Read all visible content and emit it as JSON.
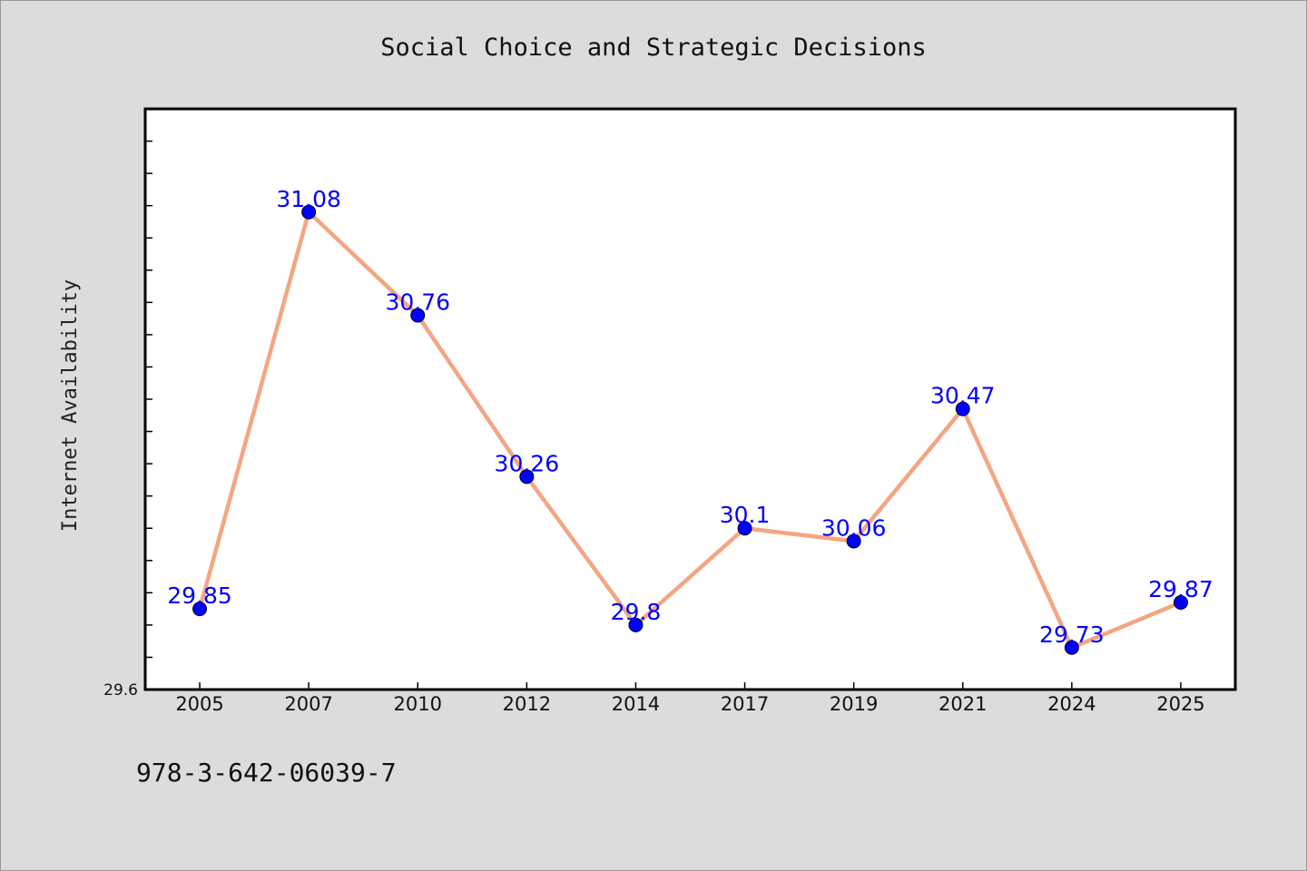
{
  "chart_data": {
    "type": "line",
    "title": "Social Choice and Strategic Decisions",
    "xlabel": "",
    "ylabel": "Internet Availability",
    "categories": [
      "2005",
      "2007",
      "2010",
      "2012",
      "2014",
      "2017",
      "2019",
      "2021",
      "2024",
      "2025"
    ],
    "series": [
      {
        "values": [
          29.85,
          31.08,
          30.76,
          30.26,
          29.8,
          30.1,
          30.06,
          30.47,
          29.73,
          29.87
        ],
        "labels": [
          "29.85",
          "31.08",
          "30.76",
          "30.26",
          "29.8",
          "30.1",
          "30.06",
          "30.47",
          "29.73",
          "29.87"
        ]
      }
    ],
    "ylim": [
      29.6,
      31.4
    ],
    "y_tick_labels": [
      {
        "value": 29.6,
        "label": "29.6"
      }
    ],
    "y_minor_step": 0.1,
    "grid": false,
    "line_color": "#f4a582",
    "marker_color": "#0000ff",
    "label_color": "#0000ff"
  },
  "footer": {
    "text": "978-3-642-06039-7"
  }
}
